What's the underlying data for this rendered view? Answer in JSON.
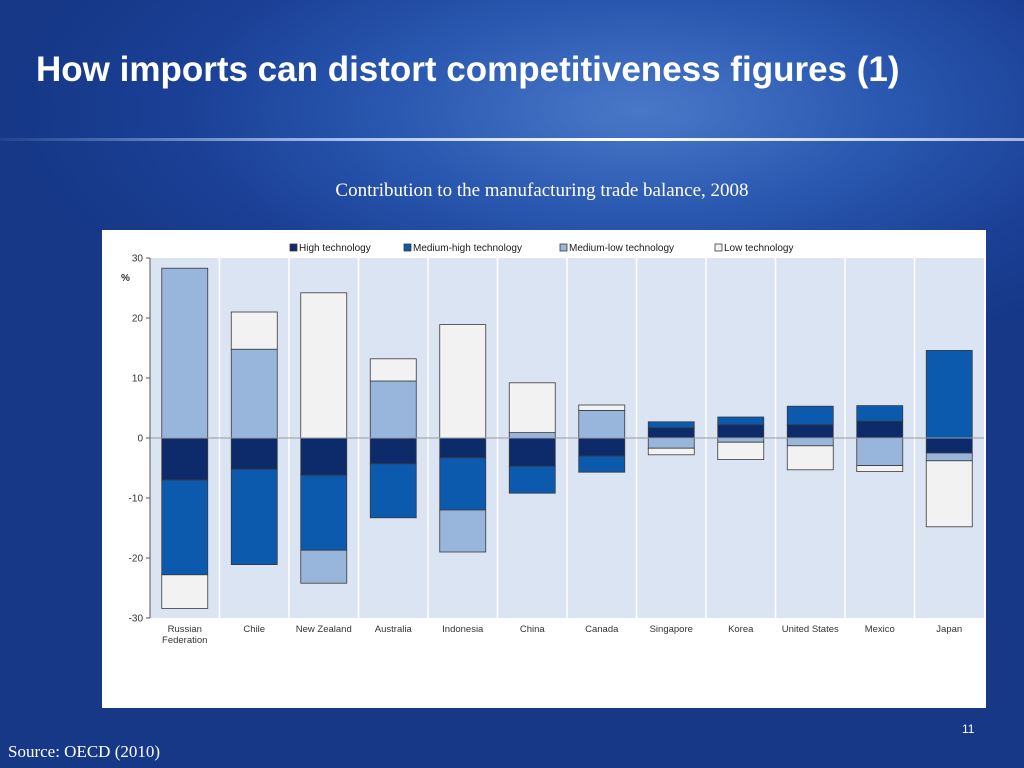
{
  "slide": {
    "title": "How imports can distort competitiveness figures (1)",
    "subtitle": "Contribution to the manufacturing trade balance, 2008",
    "source": "Source: OECD (2010)",
    "page_number": "11"
  },
  "colors": {
    "High technology": "#0d2a6a",
    "Medium-high technology": "#0b5aad",
    "Medium-low technology": "#98b6dc",
    "Low technology": "#f2f2f2",
    "plot_background": "#dae4f3"
  },
  "chart_data": {
    "type": "bar",
    "stacked": true,
    "ylabel": "%",
    "ylim": [
      -30,
      30
    ],
    "yticks": [
      30,
      20,
      10,
      0,
      -10,
      -20,
      -30
    ],
    "ytick_labels": [
      "30",
      "20",
      "10",
      "0",
      "-10",
      "-20",
      "-30"
    ],
    "grid": false,
    "legend_position": "top",
    "categories": [
      [
        "Russian",
        "Federation"
      ],
      [
        "Chile"
      ],
      [
        "New Zealand"
      ],
      [
        "Australia"
      ],
      [
        "Indonesia"
      ],
      [
        "China"
      ],
      [
        "Canada"
      ],
      [
        "Singapore"
      ],
      [
        "Korea"
      ],
      [
        "United States"
      ],
      [
        "Mexico"
      ],
      [
        "Japan"
      ]
    ],
    "series": [
      {
        "name": "High technology",
        "values": [
          -7.0,
          -5.2,
          -6.2,
          -4.3,
          -3.3,
          -4.7,
          -3.0,
          1.7,
          2.2,
          2.2,
          2.8,
          -2.5
        ]
      },
      {
        "name": "Medium-high technology",
        "values": [
          -15.8,
          -15.9,
          -12.5,
          -9.0,
          -8.7,
          -4.5,
          -2.7,
          1.0,
          1.3,
          3.1,
          2.6,
          14.6
        ]
      },
      {
        "name": "Medium-low technology",
        "values": [
          28.3,
          14.8,
          -5.5,
          9.5,
          -7.0,
          0.9,
          4.6,
          -1.7,
          -0.7,
          -1.3,
          -4.6,
          -1.3
        ]
      },
      {
        "name": "Low technology",
        "values": [
          -5.6,
          6.2,
          24.2,
          3.7,
          18.9,
          8.3,
          0.9,
          -1.1,
          -2.9,
          -4.0,
          -1.0,
          -11.0
        ]
      }
    ]
  }
}
